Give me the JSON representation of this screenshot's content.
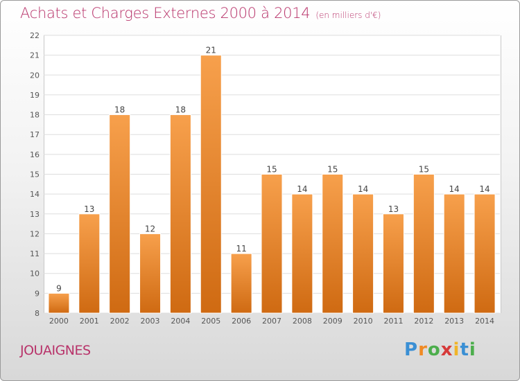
{
  "title": "Achats et Charges Externes 2000 à 2014",
  "unit_note": "(en milliers d'€)",
  "location": "JOUAIGNES",
  "brand": "Proxiti",
  "colors": {
    "bar_top": "#f7a04c",
    "bar_bottom": "#cf6a12",
    "title": "#b8336a",
    "grid": "#dddddd"
  },
  "chart_data": {
    "type": "bar",
    "title": "Achats et Charges Externes 2000 à 2014",
    "categories": [
      "2000",
      "2001",
      "2002",
      "2003",
      "2004",
      "2005",
      "2006",
      "2007",
      "2008",
      "2009",
      "2010",
      "2011",
      "2012",
      "2013",
      "2014"
    ],
    "values": [
      9,
      13,
      18,
      12,
      18,
      21,
      11,
      15,
      14,
      15,
      14,
      13,
      15,
      14,
      14
    ],
    "ylim": [
      8,
      22
    ],
    "yticks": [
      8,
      9,
      10,
      11,
      12,
      13,
      14,
      15,
      16,
      17,
      18,
      19,
      20,
      21,
      22
    ],
    "grid": true,
    "legend": "none",
    "xlabel": "",
    "ylabel": ""
  }
}
